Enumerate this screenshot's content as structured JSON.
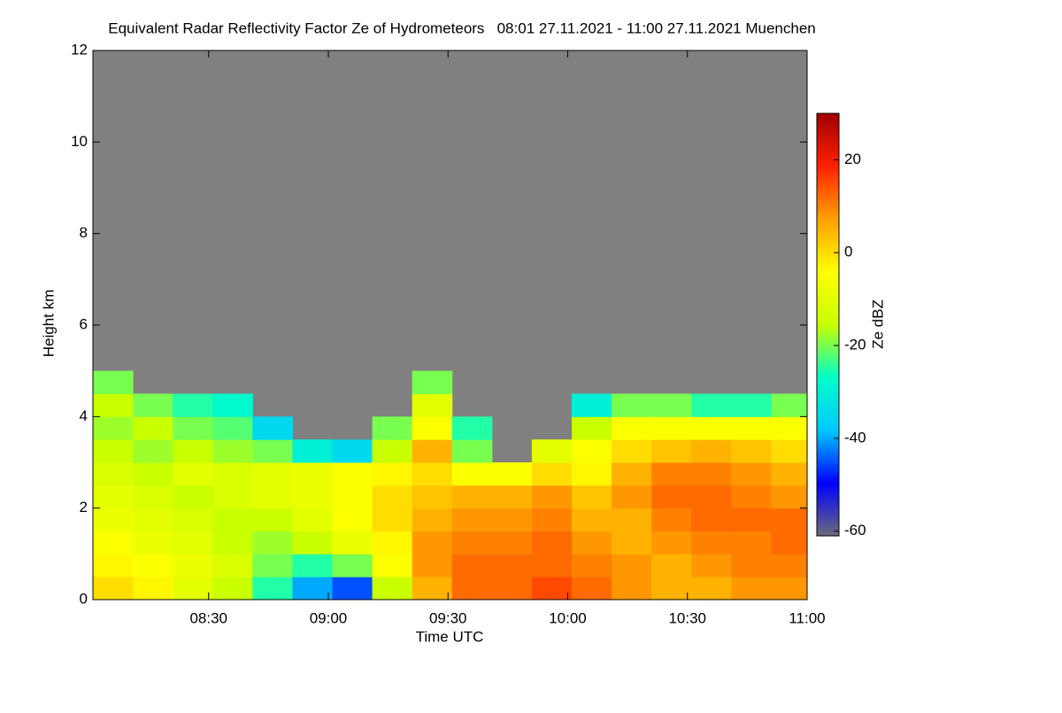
{
  "chart_data": {
    "type": "heatmap",
    "title": "Equivalent Radar Reflectivity Factor Ze of Hydrometeors   08:01 27.11.2021 - 11:00 27.11.2021 Muenchen",
    "xlabel": "Time UTC",
    "ylabel": "Height km",
    "colorbar_label": "Ze dBZ",
    "xlim": [
      481,
      660
    ],
    "xticks": [
      {
        "value": 510,
        "label": "08:30"
      },
      {
        "value": 540,
        "label": "09:00"
      },
      {
        "value": 570,
        "label": "09:30"
      },
      {
        "value": 600,
        "label": "10:00"
      },
      {
        "value": 630,
        "label": "10:30"
      },
      {
        "value": 660,
        "label": "11:00"
      }
    ],
    "ylim": [
      0,
      12
    ],
    "yticks": [
      0,
      2,
      4,
      6,
      8,
      10,
      12
    ],
    "zlim": [
      -61,
      30
    ],
    "zticks": [
      -60,
      -40,
      -20,
      0,
      20
    ],
    "background": "#808080",
    "colormap": [
      "#6a6a7a",
      "#0000ff",
      "#00c8ff",
      "#00ffc8",
      "#c8ff00",
      "#ffff00",
      "#ffa000",
      "#ff2000",
      "#a00000"
    ],
    "x": [
      486,
      496,
      506,
      516,
      526,
      536,
      546,
      556,
      566,
      576,
      586,
      596,
      606,
      616,
      626,
      636,
      646,
      656
    ],
    "y": [
      0.25,
      0.75,
      1.25,
      1.75,
      2.25,
      2.75,
      3.25,
      3.75,
      4.25,
      4.75
    ],
    "z": [
      [
        0,
        -3,
        -5,
        -8,
        -10,
        -12,
        -15,
        -18,
        -15,
        -20
      ],
      [
        -3,
        -5,
        -8,
        -10,
        -12,
        -15,
        -18,
        -15,
        -20,
        null
      ],
      [
        -10,
        -8,
        -10,
        -12,
        -15,
        -10,
        -15,
        -20,
        -25,
        null
      ],
      [
        -15,
        -12,
        -15,
        -15,
        -12,
        -12,
        -18,
        -22,
        -28,
        null
      ],
      [
        -25,
        -20,
        -18,
        -15,
        -10,
        -10,
        -20,
        -35,
        null,
        null
      ],
      [
        -40,
        -25,
        -15,
        -10,
        -8,
        -8,
        -30,
        null,
        null,
        null
      ],
      [
        -45,
        -20,
        -8,
        -5,
        -5,
        -5,
        -35,
        null,
        null,
        null
      ],
      [
        -15,
        -5,
        -3,
        0,
        0,
        -3,
        -15,
        -20,
        null,
        null
      ],
      [
        5,
        8,
        8,
        5,
        3,
        0,
        5,
        -5,
        -10,
        -20
      ],
      [
        12,
        12,
        10,
        8,
        5,
        -5,
        -20,
        -25,
        null,
        null
      ],
      [
        12,
        12,
        10,
        8,
        5,
        -5,
        null,
        null,
        null,
        null
      ],
      [
        15,
        12,
        12,
        10,
        8,
        0,
        -10,
        null,
        null,
        null
      ],
      [
        12,
        10,
        8,
        5,
        3,
        -3,
        -5,
        -15,
        -30,
        null
      ],
      [
        8,
        8,
        5,
        5,
        8,
        5,
        0,
        -5,
        -20,
        null
      ],
      [
        5,
        5,
        8,
        10,
        12,
        10,
        3,
        -5,
        -20,
        null
      ],
      [
        5,
        8,
        10,
        12,
        12,
        10,
        5,
        -5,
        -25,
        null
      ],
      [
        8,
        10,
        10,
        12,
        10,
        8,
        3,
        -5,
        -25,
        null
      ],
      [
        8,
        10,
        12,
        12,
        8,
        5,
        0,
        -5,
        -20,
        null
      ]
    ]
  }
}
